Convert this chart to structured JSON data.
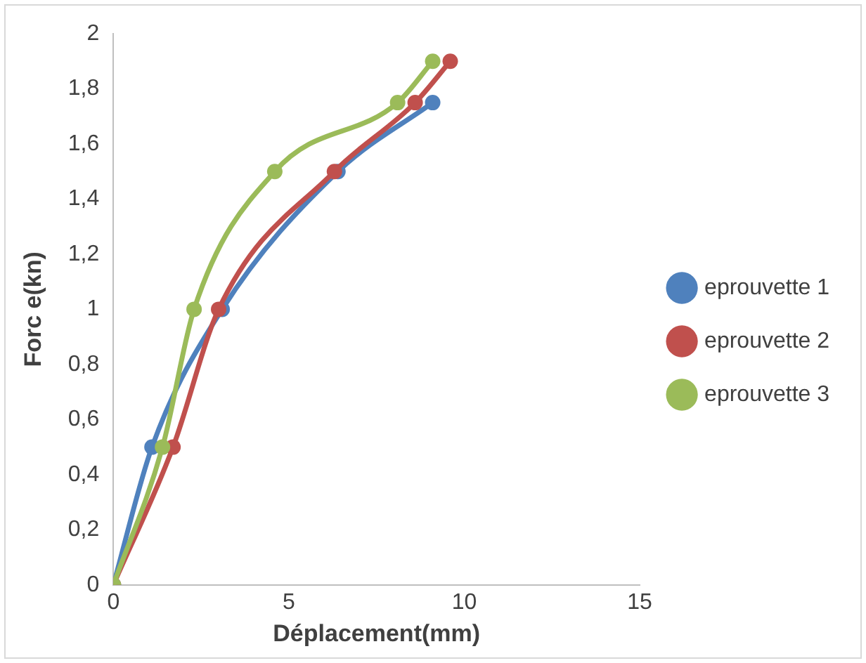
{
  "chart_data": {
    "type": "line",
    "xlabel": "Déplacement(mm)",
    "ylabel": "Forc e(kn)",
    "xlim": [
      0,
      15
    ],
    "xticks": [
      0,
      5,
      10,
      15
    ],
    "ylim": [
      0,
      2
    ],
    "yticks": [
      0,
      {
        "value": 0.2,
        "label": "0,2"
      },
      {
        "value": 0.4,
        "label": "0,4"
      },
      {
        "value": 0.6,
        "label": "0,6"
      },
      {
        "value": 0.8,
        "label": "0,8"
      },
      1,
      {
        "value": 1.2,
        "label": "1,2"
      },
      {
        "value": 1.4,
        "label": "1,4"
      },
      {
        "value": 1.6,
        "label": "1,6"
      },
      {
        "value": 1.8,
        "label": "1,8"
      },
      2
    ],
    "grid": false,
    "legend": "right",
    "marker": "circle",
    "line_style": "solid",
    "series": [
      {
        "name": "eprouvette 1",
        "color": "#4f81bd",
        "x": [
          0,
          1.1,
          3.1,
          6.4,
          9.1
        ],
        "values": [
          0,
          0.5,
          1,
          1.5,
          1.75
        ]
      },
      {
        "name": "eprouvette 2",
        "color": "#c0504d",
        "x": [
          0,
          1.7,
          3,
          6.3,
          8.6,
          9.6
        ],
        "values": [
          0,
          0.5,
          1,
          1.5,
          1.75,
          1.9
        ]
      },
      {
        "name": "eprouvette 3",
        "color": "#9bbb59",
        "x": [
          0,
          1.4,
          2.3,
          4.6,
          8.1,
          9.1
        ],
        "values": [
          0,
          0.5,
          1,
          1.5,
          1.75,
          1.9
        ]
      }
    ]
  }
}
